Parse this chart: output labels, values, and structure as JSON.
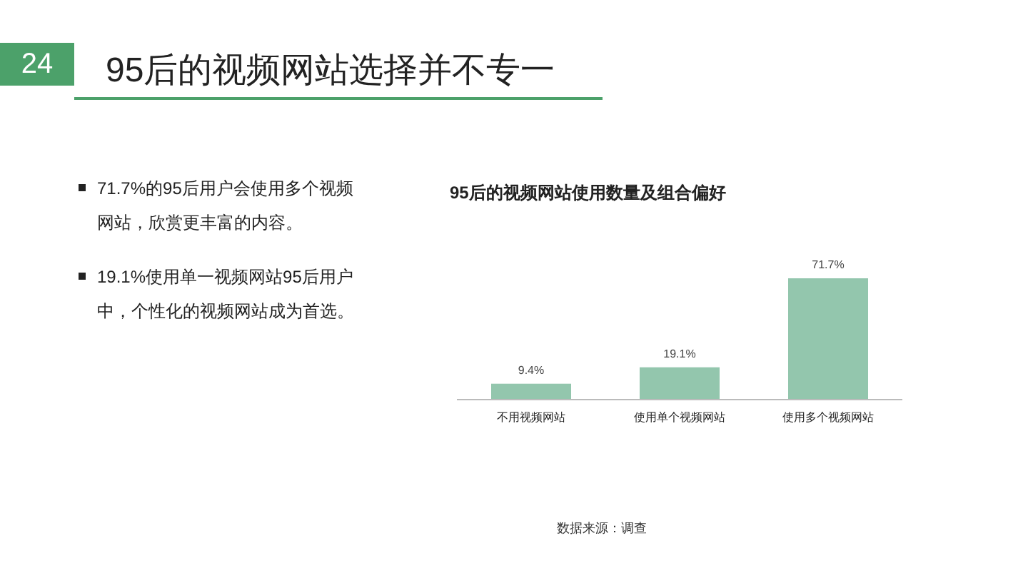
{
  "chart_data": {
    "type": "bar",
    "title": "95后的视频网站选择并不专一",
    "subtitle": "95后的视频网站使用数量及组合偏好",
    "categories": [
      "不用视频网站",
      "使用单个视频网站",
      "使用多个视频网站"
    ],
    "values": [
      9.4,
      19.1,
      71.7
    ],
    "color": "#93c6ad",
    "value_labels": [
      "9.4%",
      "19.1%",
      "71.7%"
    ],
    "annotations": [
      "24",
      "71.7%的95后用户会使用多个视频网站，欣赏更丰富的内容。",
      "19.1%使用单一视频网站95后用户中，个性化的视频网站成为首选。",
      "数据来源：调查"
    ]
  }
}
